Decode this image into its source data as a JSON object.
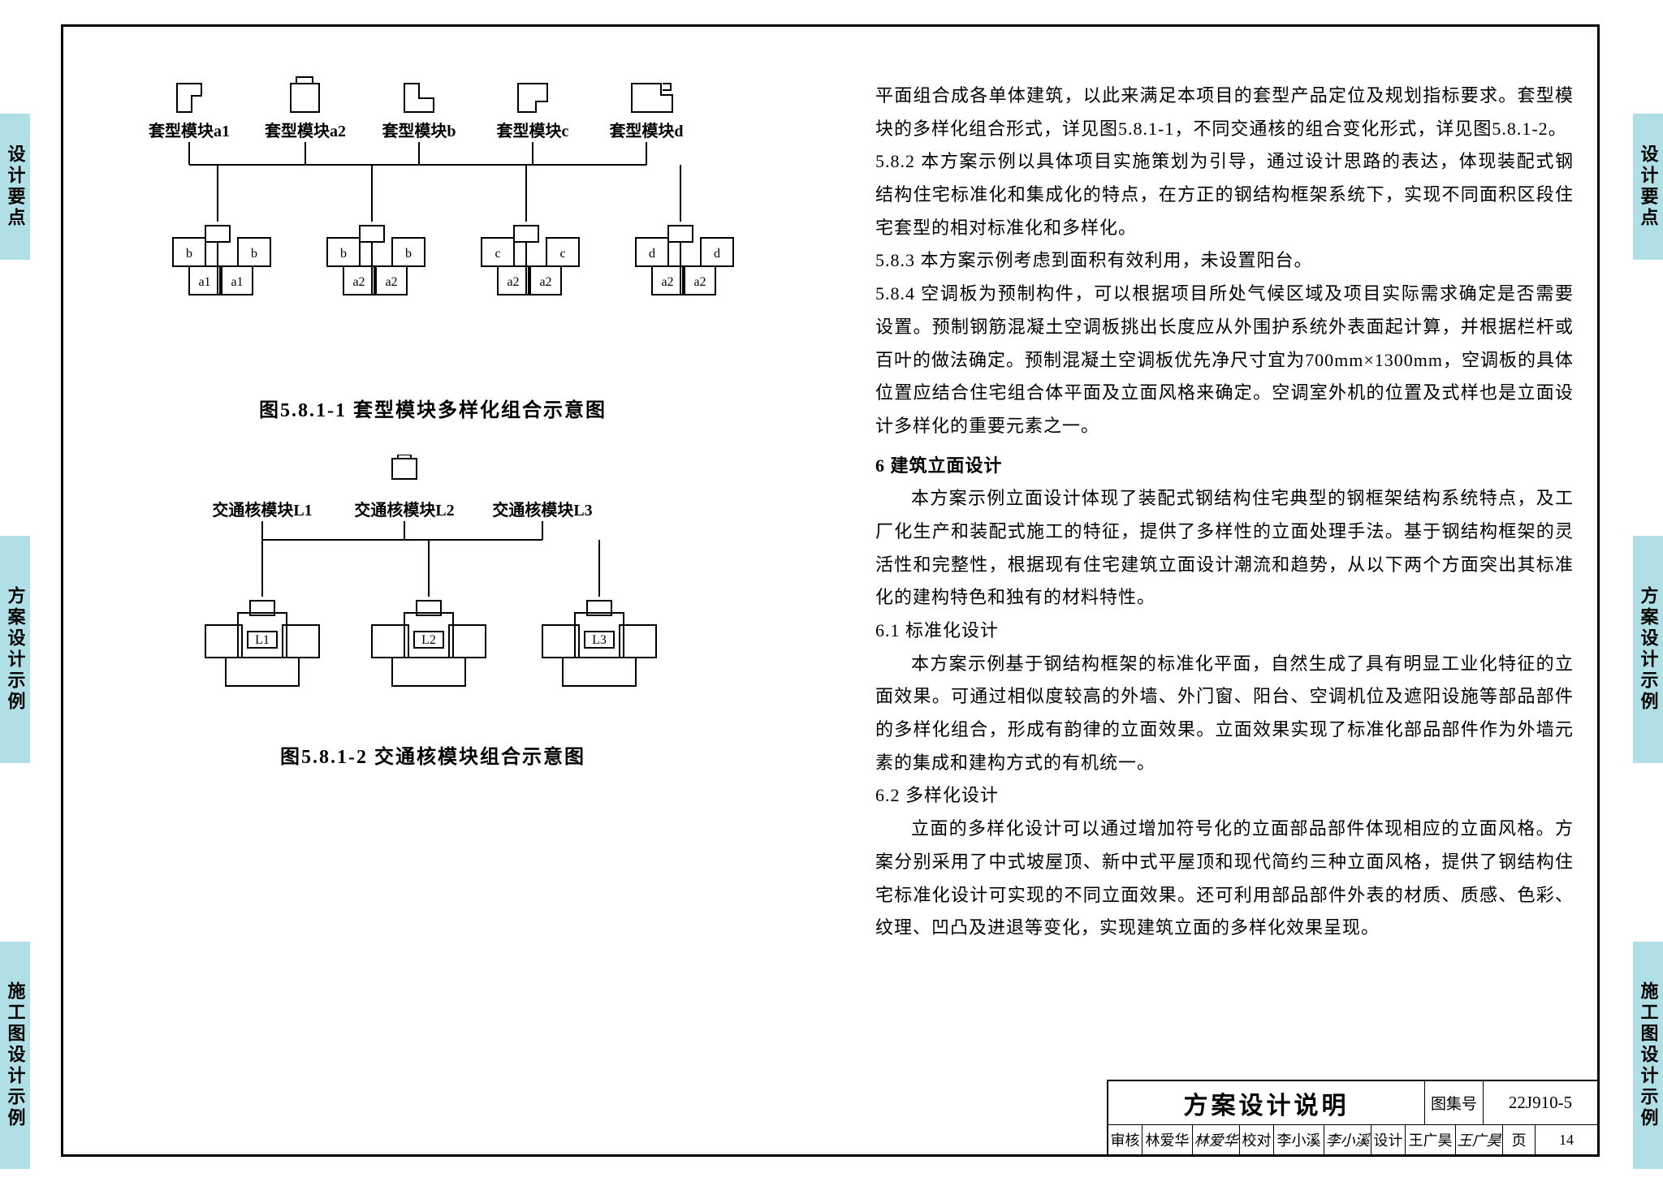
{
  "side_tabs": {
    "left": [
      "设计要点",
      "方案设计示例",
      "施工图设计示例"
    ],
    "right": [
      "设计要点",
      "方案设计示例",
      "施工图设计示例"
    ]
  },
  "figure1": {
    "caption": "图5.8.1-1    套型模块多样化组合示意图",
    "top_modules": [
      "套型模块a1",
      "套型模块a2",
      "套型模块b",
      "套型模块c",
      "套型模块d"
    ],
    "bottom_groups": [
      {
        "outer": [
          "b",
          "b"
        ],
        "inner": [
          "a1",
          "a1"
        ]
      },
      {
        "outer": [
          "b",
          "b"
        ],
        "inner": [
          "a2",
          "a2"
        ]
      },
      {
        "outer": [
          "c",
          "c"
        ],
        "inner": [
          "a2",
          "a2"
        ]
      },
      {
        "outer": [
          "d",
          "d"
        ],
        "inner": [
          "a2",
          "a2"
        ]
      }
    ]
  },
  "figure2": {
    "caption": "图5.8.1-2    交通核模块组合示意图",
    "modules": [
      "交通核模块L1",
      "交通核模块L2",
      "交通核模块L3"
    ],
    "bottom_labels": [
      "L1",
      "L2",
      "L3"
    ]
  },
  "body": {
    "p1": "平面组合成各单体建筑，以此来满足本项目的套型产品定位及规划指标要求。套型模块的多样化组合形式，详见图5.8.1-1，不同交通核的组合变化形式，详见图5.8.1-2。",
    "p2": "5.8.2 本方案示例以具体项目实施策划为引导，通过设计思路的表达，体现装配式钢结构住宅标准化和集成化的特点，在方正的钢结构框架系统下，实现不同面积区段住宅套型的相对标准化和多样化。",
    "p3": "5.8.3 本方案示例考虑到面积有效利用，未设置阳台。",
    "p4": "5.8.4 空调板为预制构件，可以根据项目所处气候区域及项目实际需求确定是否需要设置。预制钢筋混凝土空调板挑出长度应从外围护系统外表面起计算，并根据栏杆或百叶的做法确定。预制混凝土空调板优先净尺寸宜为700mm×1300mm，空调板的具体位置应结合住宅组合体平面及立面风格来确定。空调室外机的位置及式样也是立面设计多样化的重要元素之一。",
    "h6": "6  建筑立面设计",
    "p6_intro": "本方案示例立面设计体现了装配式钢结构住宅典型的钢框架结构系统特点，及工厂化生产和装配式施工的特征，提供了多样性的立面处理手法。基于钢结构框架的灵活性和完整性，根据现有住宅建筑立面设计潮流和趋势，从以下两个方面突出其标准化的建构特色和独有的材料特性。",
    "h61": "6.1 标准化设计",
    "p61": "本方案示例基于钢结构框架的标准化平面，自然生成了具有明显工业化特征的立面效果。可通过相似度较高的外墙、外门窗、阳台、空调机位及遮阳设施等部品部件的多样化组合，形成有韵律的立面效果。立面效果实现了标准化部品部件作为外墙元素的集成和建构方式的有机统一。",
    "h62": "6.2 多样化设计",
    "p62": "立面的多样化设计可以通过增加符号化的立面部品部件体现相应的立面风格。方案分别采用了中式坡屋顶、新中式平屋顶和现代简约三种立面风格，提供了钢结构住宅标准化设计可实现的不同立面效果。还可利用部品部件外表的材质、质感、色彩、纹理、凹凸及进退等变化，实现建筑立面的多样化效果呈现。"
  },
  "title_block": {
    "title": "方案设计说明",
    "code_label": "图集号",
    "code": "22J910-5",
    "row2": {
      "review_label": "审核",
      "review_name": "林爱华",
      "review_sig": "林爱华",
      "check_label": "校对",
      "check_name": "李小溪",
      "check_sig": "李小溪",
      "design_label": "设计",
      "design_name": "王广昊",
      "design_sig": "王广昊",
      "page_label": "页",
      "page_num": "14"
    }
  },
  "colors": {
    "tab_bg": "#b0e0e6",
    "border": "#000000",
    "text": "#000000"
  }
}
